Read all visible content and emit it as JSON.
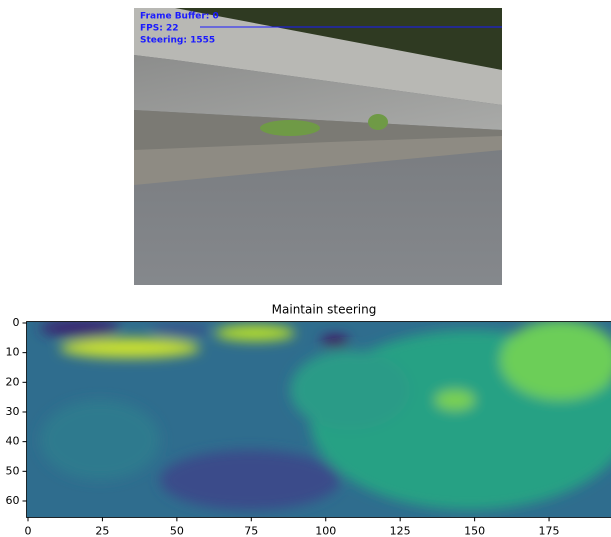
{
  "photo": {
    "overlay": [
      "Frame Buffer: 0",
      "FPS: 22",
      "Steering: 1555"
    ]
  },
  "chart_data": {
    "type": "heatmap",
    "title": "Maintain steering",
    "xlim": [
      -0.5,
      199.5
    ],
    "ylim": [
      65.5,
      -0.5
    ],
    "xticks": [
      0,
      25,
      50,
      75,
      100,
      125,
      150,
      175
    ],
    "yticks": [
      0,
      10,
      20,
      30,
      40,
      50,
      60
    ]
  }
}
